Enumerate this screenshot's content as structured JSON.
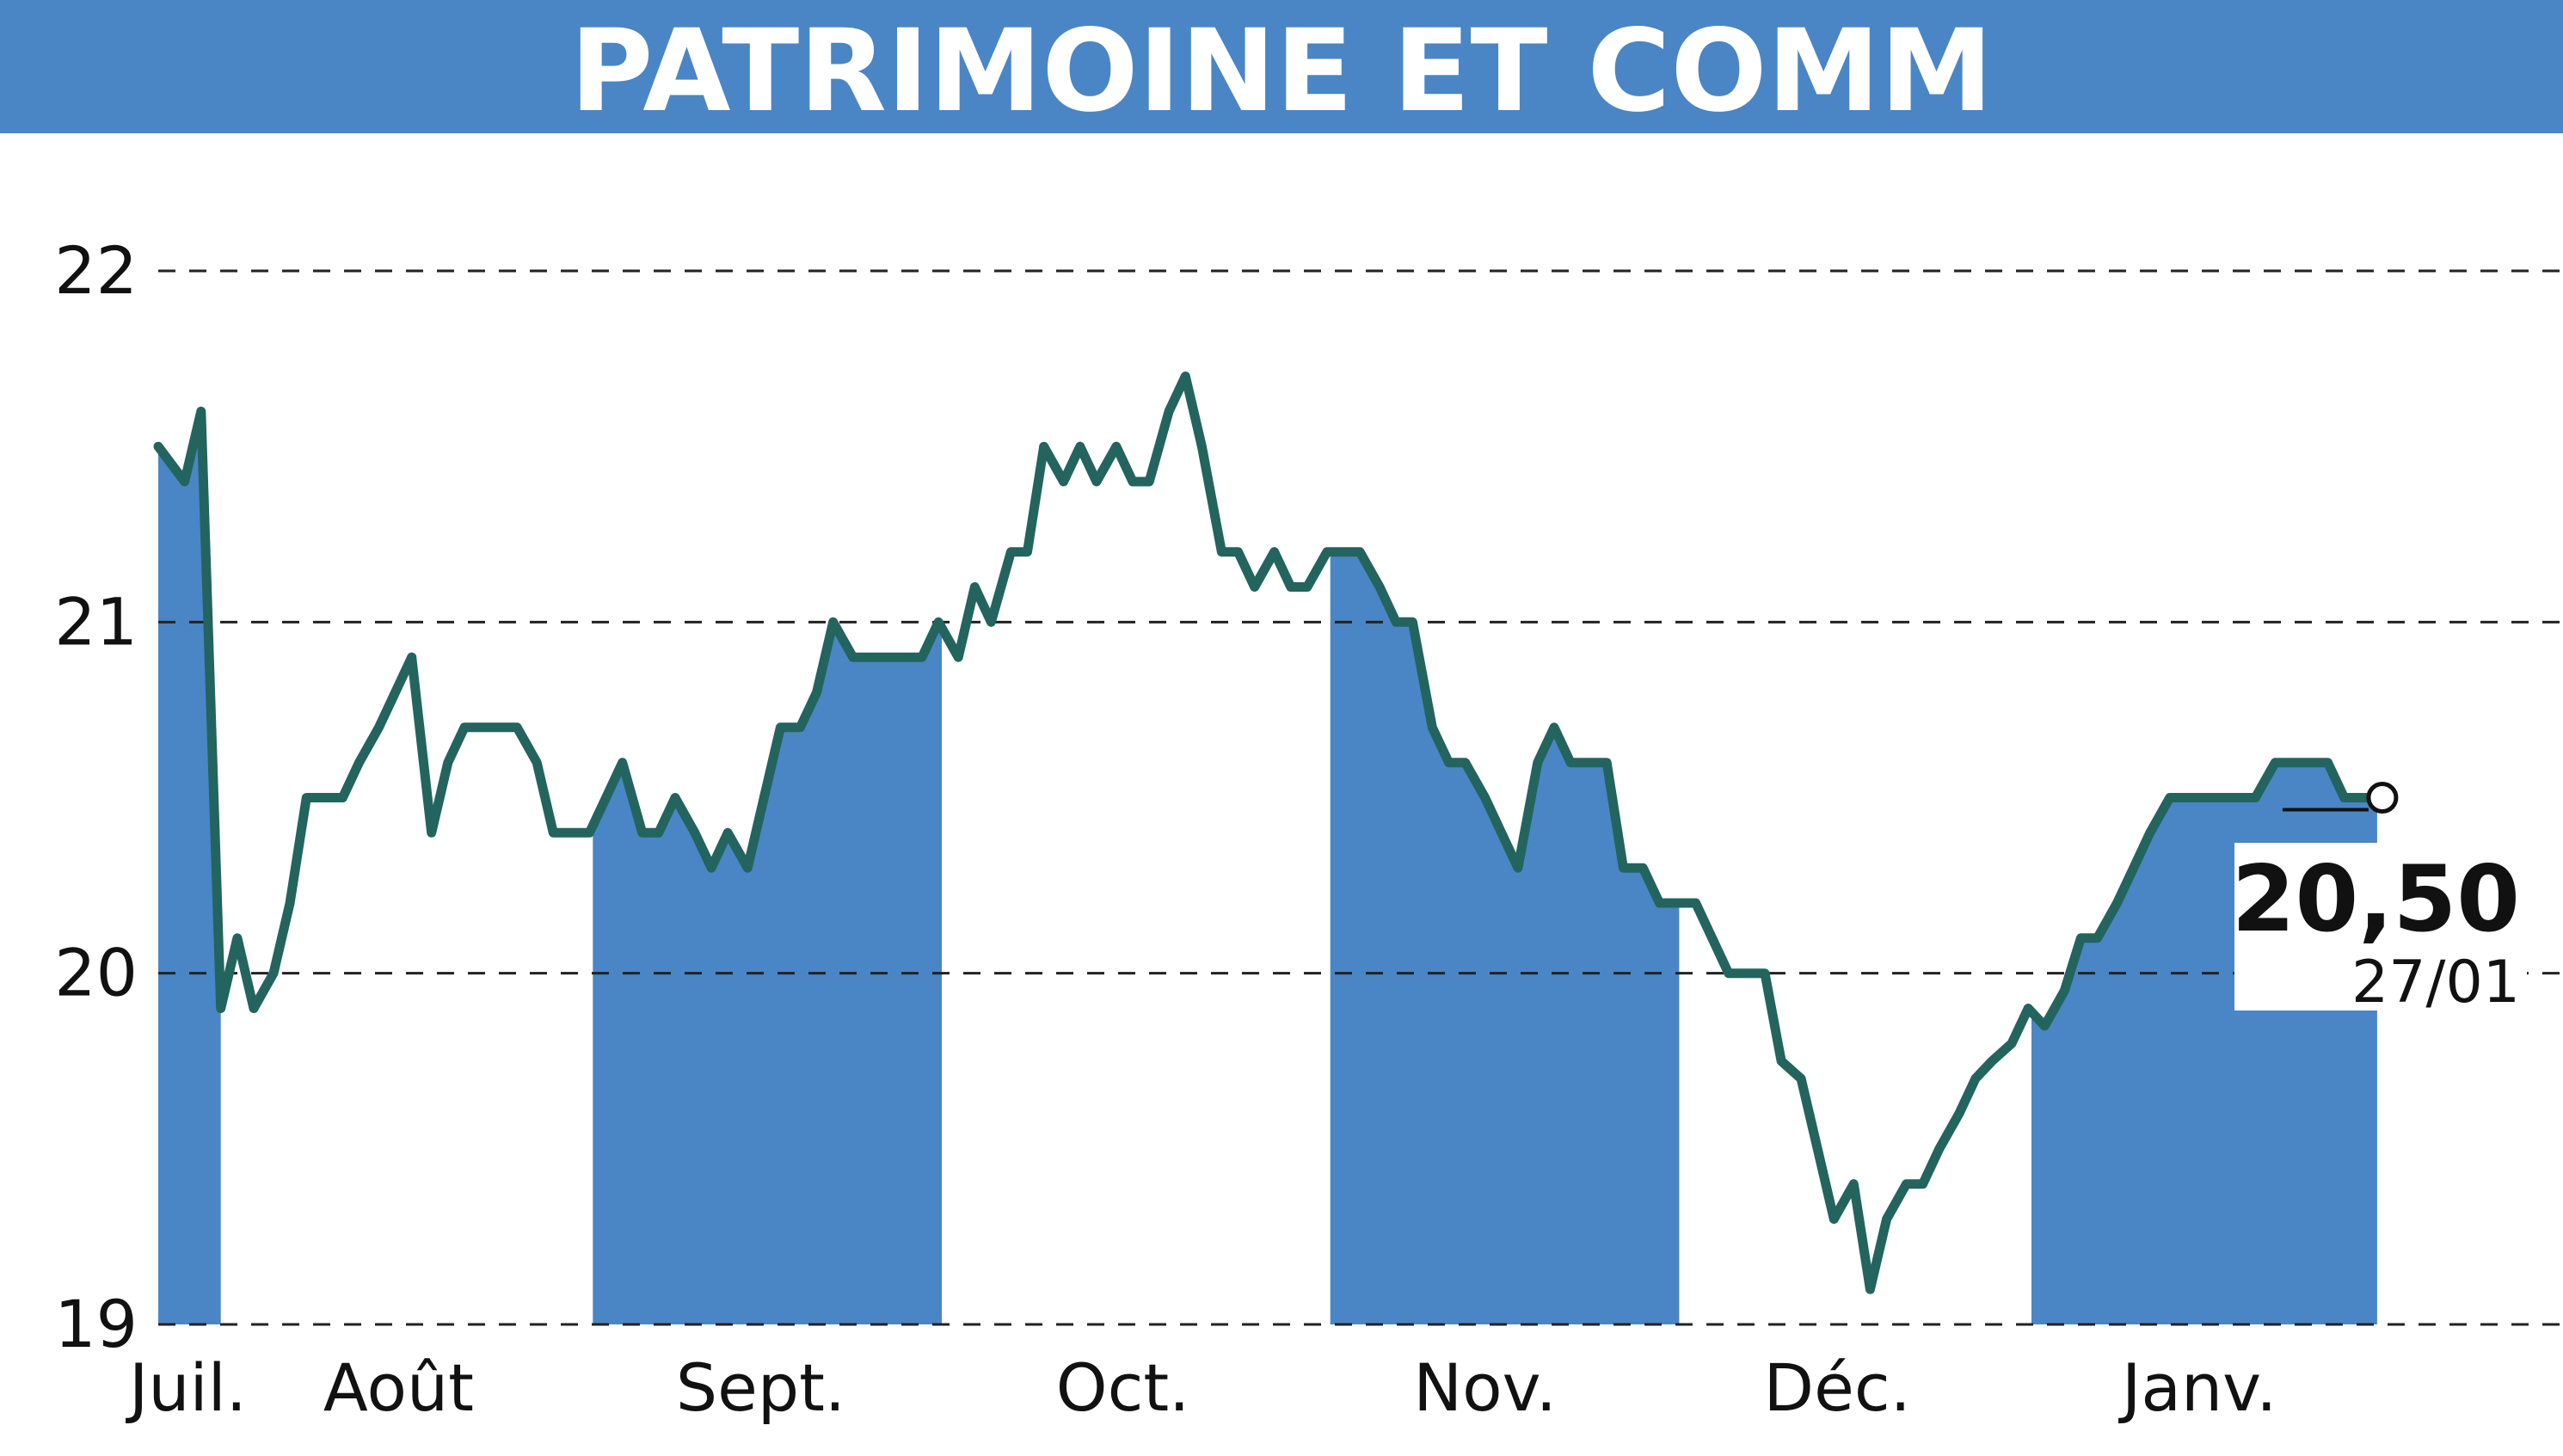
{
  "title": "PATRIMOINE ET COMM",
  "colors": {
    "header": "#4a86c5",
    "band": "#4a86c5",
    "line": "#23645e",
    "grid": "#222222"
  },
  "last": {
    "value_label": "20,50",
    "date_label": "27/01"
  },
  "chart_data": {
    "type": "line",
    "title": "PATRIMOINE ET COMM",
    "ylim": [
      19,
      22
    ],
    "yticks": [
      19,
      20,
      21,
      22
    ],
    "grid": "horizontal dashed",
    "xlim": [
      0,
      7.2
    ],
    "months": [
      {
        "label": "Juil.",
        "pos": 0.09,
        "shaded_from": 0.0,
        "shaded_to": 0.19
      },
      {
        "label": "Août",
        "pos": 0.73,
        "shaded_from": null,
        "shaded_to": null
      },
      {
        "label": "Sept.",
        "pos": 1.83,
        "shaded_from": 1.32,
        "shaded_to": 2.38
      },
      {
        "label": "Oct.",
        "pos": 2.93,
        "shaded_from": null,
        "shaded_to": null
      },
      {
        "label": "Nov.",
        "pos": 4.03,
        "shaded_from": 3.56,
        "shaded_to": 4.62
      },
      {
        "label": "Déc.",
        "pos": 5.1,
        "shaded_from": null,
        "shaded_to": null
      },
      {
        "label": "Janv.",
        "pos": 6.2,
        "shaded_from": 5.69,
        "shaded_to": 6.74
      }
    ],
    "series": [
      {
        "x": [
          0.0,
          0.08,
          0.13,
          0.19,
          0.24,
          0.29,
          0.35,
          0.4,
          0.45,
          0.5,
          0.56,
          0.61,
          0.67,
          0.72,
          0.77,
          0.83,
          0.88,
          0.93,
          0.99,
          1.04,
          1.09,
          1.15,
          1.2,
          1.25,
          1.31,
          1.36,
          1.41,
          1.47,
          1.52,
          1.57,
          1.63,
          1.68,
          1.73,
          1.79,
          1.84,
          1.89,
          1.95,
          2.0,
          2.05,
          2.11,
          2.16,
          2.21,
          2.27,
          2.32,
          2.37,
          2.43,
          2.48,
          2.53,
          2.59,
          2.64,
          2.69,
          2.75,
          2.8,
          2.85,
          2.91,
          2.96,
          3.01,
          3.07,
          3.12,
          3.17,
          3.23,
          3.28,
          3.33,
          3.39,
          3.44,
          3.49,
          3.55,
          3.6,
          3.65,
          3.71,
          3.76,
          3.81,
          3.87,
          3.92,
          3.97,
          4.03,
          4.08,
          4.13,
          4.19,
          4.24,
          4.29,
          4.35,
          4.4,
          4.45,
          4.51,
          4.56,
          4.61,
          4.67,
          4.72,
          4.77,
          4.83,
          4.88,
          4.93,
          4.99,
          5.04,
          5.09,
          5.15,
          5.2,
          5.25,
          5.31,
          5.36,
          5.41,
          5.47,
          5.52,
          5.57,
          5.63,
          5.68,
          5.73,
          5.79,
          5.84,
          5.89,
          5.95,
          6.0,
          6.05,
          6.11,
          6.16,
          6.21,
          6.27,
          6.32,
          6.37,
          6.43,
          6.48,
          6.53,
          6.59,
          6.64,
          6.7,
          6.74
        ],
        "y": [
          21.5,
          21.4,
          21.6,
          19.9,
          20.1,
          19.9,
          20.0,
          20.2,
          20.5,
          20.5,
          20.5,
          20.6,
          20.7,
          20.8,
          20.9,
          20.4,
          20.6,
          20.7,
          20.7,
          20.7,
          20.7,
          20.6,
          20.4,
          20.4,
          20.4,
          20.5,
          20.6,
          20.4,
          20.4,
          20.5,
          20.4,
          20.3,
          20.4,
          20.3,
          20.5,
          20.7,
          20.7,
          20.8,
          21.0,
          20.9,
          20.9,
          20.9,
          20.9,
          20.9,
          21.0,
          20.9,
          21.1,
          21.0,
          21.2,
          21.2,
          21.5,
          21.4,
          21.5,
          21.4,
          21.5,
          21.4,
          21.4,
          21.6,
          21.7,
          21.5,
          21.2,
          21.2,
          21.1,
          21.2,
          21.1,
          21.1,
          21.2,
          21.2,
          21.2,
          21.1,
          21.0,
          21.0,
          20.7,
          20.6,
          20.6,
          20.5,
          20.4,
          20.3,
          20.6,
          20.7,
          20.6,
          20.6,
          20.6,
          20.3,
          20.3,
          20.2,
          20.2,
          20.2,
          20.1,
          20.0,
          20.0,
          20.0,
          19.75,
          19.7,
          19.5,
          19.3,
          19.4,
          19.1,
          19.3,
          19.4,
          19.4,
          19.5,
          19.6,
          19.7,
          19.75,
          19.8,
          19.9,
          19.85,
          19.95,
          20.1,
          20.1,
          20.2,
          20.3,
          20.4,
          20.5,
          20.5,
          20.5,
          20.5,
          20.5,
          20.5,
          20.6,
          20.6,
          20.6,
          20.6,
          20.5,
          20.5,
          20.5
        ]
      }
    ],
    "last_point": {
      "x": 6.74,
      "y": 20.5,
      "label": "20,50",
      "date": "27/01"
    }
  }
}
